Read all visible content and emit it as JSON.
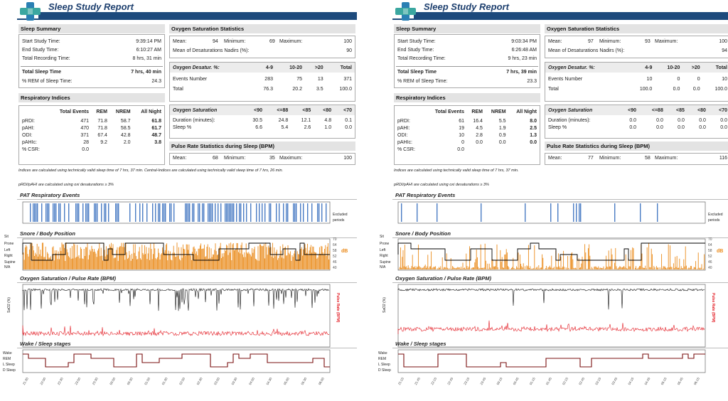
{
  "colors": {
    "brand": "#1d4a7c",
    "pat": "#4a7cc4",
    "snore": "#ea8a1a",
    "pulse": "#e31b23",
    "sleep": "#7a0f0f"
  },
  "report_title": "Sleep Study Report",
  "labels": {
    "sleep_summary": "Sleep Summary",
    "start": "Start Study Time:",
    "end": "End Study Time:",
    "rec": "Total Recording Time:",
    "tst": "Total Sleep Time",
    "rem_pct": "% REM of Sleep Time:",
    "resp": "Respiratory Indices",
    "resp_cols": [
      "Total Events",
      "REM",
      "NREM",
      "All Night"
    ],
    "resp_rows": [
      "pRDI:",
      "pAHI:",
      "ODI:",
      "pAHIc:",
      "% CSR:"
    ],
    "oxy": "Oxygen Saturation Statistics",
    "mean": "Mean:",
    "minimum": "Minimum:",
    "maximum": "Maximum:",
    "nadirs": "Mean of Desaturations Nadirs (%):",
    "desat_title": "Oxygen Desatur. %:",
    "desat_cols": [
      "4-9",
      "10-20",
      ">20",
      "Total"
    ],
    "events_number": "Events Number",
    "total": "Total",
    "sat_title": "Oxygen Saturation",
    "sat_cols": [
      "<90",
      "<=88",
      "<85",
      "<80",
      "<70"
    ],
    "duration": "Duration (minutes):",
    "sleep_pct": "Sleep %",
    "pulse": "Pulse Rate Statistics during Sleep (BPM)",
    "ofdi_note": "pRDI/pAHI are calculated using oxi desaturations ≥ 3%",
    "pat_title": "PAT Respiratory Events",
    "excluded": "Excluded periods",
    "snore_title": "Snore / Body Position",
    "positions": [
      "Sit",
      "Prone",
      "Left",
      "Right",
      "Supine",
      "N/A"
    ],
    "db_ticks": [
      "70",
      "64",
      "58",
      "52",
      "46",
      "40"
    ],
    "db": "dB",
    "oxy_title": "Oxygen Saturation / Pulse Rate (BPM)",
    "spo2": "SaO2 (%)",
    "pr": "Pulse Rate (BPM)",
    "stages_title": "Wake / Sleep stages",
    "stages": [
      "Wake",
      "REM",
      "L Sleep",
      "D Sleep"
    ]
  },
  "reports": [
    {
      "start": "9:39:14 PM",
      "end": "6:10:27 AM",
      "rec": "8 hrs, 31 min",
      "tst": "7 hrs, 40 min",
      "rem_pct": "24.3",
      "resp": [
        [
          "471",
          "71.8",
          "58.7",
          "61.8"
        ],
        [
          "470",
          "71.8",
          "58.5",
          "61.7"
        ],
        [
          "371",
          "67.4",
          "42.8",
          "48.7"
        ],
        [
          "28",
          "9.2",
          "2.0",
          "3.8"
        ],
        [
          "0.0",
          "",
          "",
          ""
        ]
      ],
      "oxy_mean": "94",
      "oxy_min": "69",
      "oxy_max": "100",
      "nadirs": "90",
      "events": [
        "283",
        "75",
        "13",
        "371"
      ],
      "events_total": [
        "76.3",
        "20.2",
        "3.5",
        "100.0"
      ],
      "duration": [
        "30.5",
        "24.8",
        "12.1",
        "4.8",
        "0.1"
      ],
      "sleep_pct": [
        "6.6",
        "5.4",
        "2.6",
        "1.0",
        "0.0"
      ],
      "pulse_mean": "68",
      "pulse_min": "35",
      "pulse_max": "100",
      "note": "Indices are calculated using technically valid sleep time of  7 hrs, 37 min. Central-Indices are calculated using technically valid sleep time of  7 hrs, 26 min.",
      "pat_density": 0.85,
      "desat_level": 0.6,
      "times": [
        "21:30",
        "22:00",
        "22:30",
        "23:00",
        "23:30",
        "00:00",
        "00:30",
        "01:00",
        "01:30",
        "02:00",
        "02:30",
        "03:00",
        "03:30",
        "04:00",
        "04:30",
        "05:00",
        "05:30",
        "06:00"
      ]
    },
    {
      "start": "9:03:34 PM",
      "end": "6:26:48 AM",
      "rec": "9 hrs, 23 min",
      "tst": "7 hrs, 39 min",
      "rem_pct": "23.3",
      "resp": [
        [
          "61",
          "16.4",
          "5.5",
          "8.0"
        ],
        [
          "19",
          "4.5",
          "1.9",
          "2.5"
        ],
        [
          "10",
          "2.8",
          "0.9",
          "1.3"
        ],
        [
          "0",
          "0.0",
          "0.0",
          "0.0"
        ],
        [
          "0.0",
          "",
          "",
          ""
        ]
      ],
      "oxy_mean": "97",
      "oxy_min": "93",
      "oxy_max": "100",
      "nadirs": "94",
      "events": [
        "10",
        "0",
        "0",
        "10"
      ],
      "events_total": [
        "100.0",
        "0.0",
        "0.0",
        "100.0"
      ],
      "duration": [
        "0.0",
        "0.0",
        "0.0",
        "0.0",
        "0.0"
      ],
      "sleep_pct": [
        "0.0",
        "0.0",
        "0.0",
        "0.0",
        "0.0"
      ],
      "pulse_mean": "77",
      "pulse_min": "58",
      "pulse_max": "116",
      "note": "Indices are calculated using technically valid sleep time of  7 hrs, 37 min.",
      "pat_density": 0.12,
      "desat_level": 0.05,
      "times": [
        "21:15",
        "21:45",
        "22:15",
        "22:45",
        "23:15",
        "23:45",
        "00:15",
        "00:45",
        "01:15",
        "01:45",
        "02:15",
        "02:45",
        "03:15",
        "03:45",
        "04:15",
        "04:45",
        "05:15",
        "05:45",
        "06:15"
      ]
    }
  ]
}
